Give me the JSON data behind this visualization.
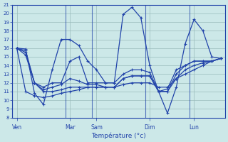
{
  "background_color": "#cce8e8",
  "grid_color": "#99bbbb",
  "line_color": "#2244aa",
  "title": "Température (°c)",
  "ylim": [
    8,
    21
  ],
  "yticks": [
    8,
    9,
    10,
    11,
    12,
    13,
    14,
    15,
    16,
    17,
    18,
    19,
    20,
    21
  ],
  "day_labels": [
    "Ven",
    "Mar",
    "Sam",
    "Dim",
    "Lun"
  ],
  "day_tick_positions": [
    0,
    6,
    9,
    15,
    20
  ],
  "day_vline_positions": [
    0,
    6,
    9,
    15,
    20
  ],
  "xlim": [
    0,
    23
  ],
  "num_points": 24,
  "figsize": [
    3.2,
    2.0
  ],
  "dpi": 100,
  "line1": [
    16.0,
    15.9,
    10.8,
    9.5,
    13.5,
    17.0,
    17.0,
    16.3,
    14.5,
    13.5,
    12.0,
    12.0,
    19.9,
    20.7,
    19.5,
    14.0,
    11.0,
    8.5,
    11.5,
    16.5,
    19.3,
    18.0,
    15.0,
    14.8
  ],
  "line2": [
    16.0,
    15.7,
    12.0,
    11.5,
    12.0,
    12.0,
    14.5,
    15.0,
    12.0,
    12.0,
    12.0,
    12.0,
    13.0,
    13.5,
    13.5,
    13.2,
    11.0,
    11.3,
    13.5,
    14.0,
    14.5,
    14.5,
    14.5,
    14.8
  ],
  "line3": [
    16.0,
    15.5,
    12.0,
    11.2,
    11.5,
    11.8,
    12.5,
    12.2,
    11.8,
    11.8,
    11.5,
    11.5,
    12.5,
    12.8,
    12.8,
    12.8,
    11.0,
    11.0,
    12.5,
    13.5,
    14.0,
    14.3,
    14.5,
    14.8
  ],
  "line4": [
    16.0,
    15.2,
    12.0,
    11.0,
    11.0,
    11.2,
    11.5,
    11.5,
    11.5,
    11.5,
    11.5,
    11.5,
    12.5,
    12.8,
    12.8,
    12.8,
    11.0,
    11.0,
    13.0,
    14.0,
    14.5,
    14.5,
    14.5,
    14.8
  ],
  "line5": [
    16.0,
    11.0,
    10.5,
    10.3,
    10.5,
    10.8,
    11.0,
    11.2,
    11.5,
    11.5,
    11.5,
    11.5,
    11.8,
    12.0,
    12.0,
    12.0,
    11.5,
    11.5,
    12.5,
    13.0,
    13.5,
    14.0,
    14.5,
    14.8
  ]
}
